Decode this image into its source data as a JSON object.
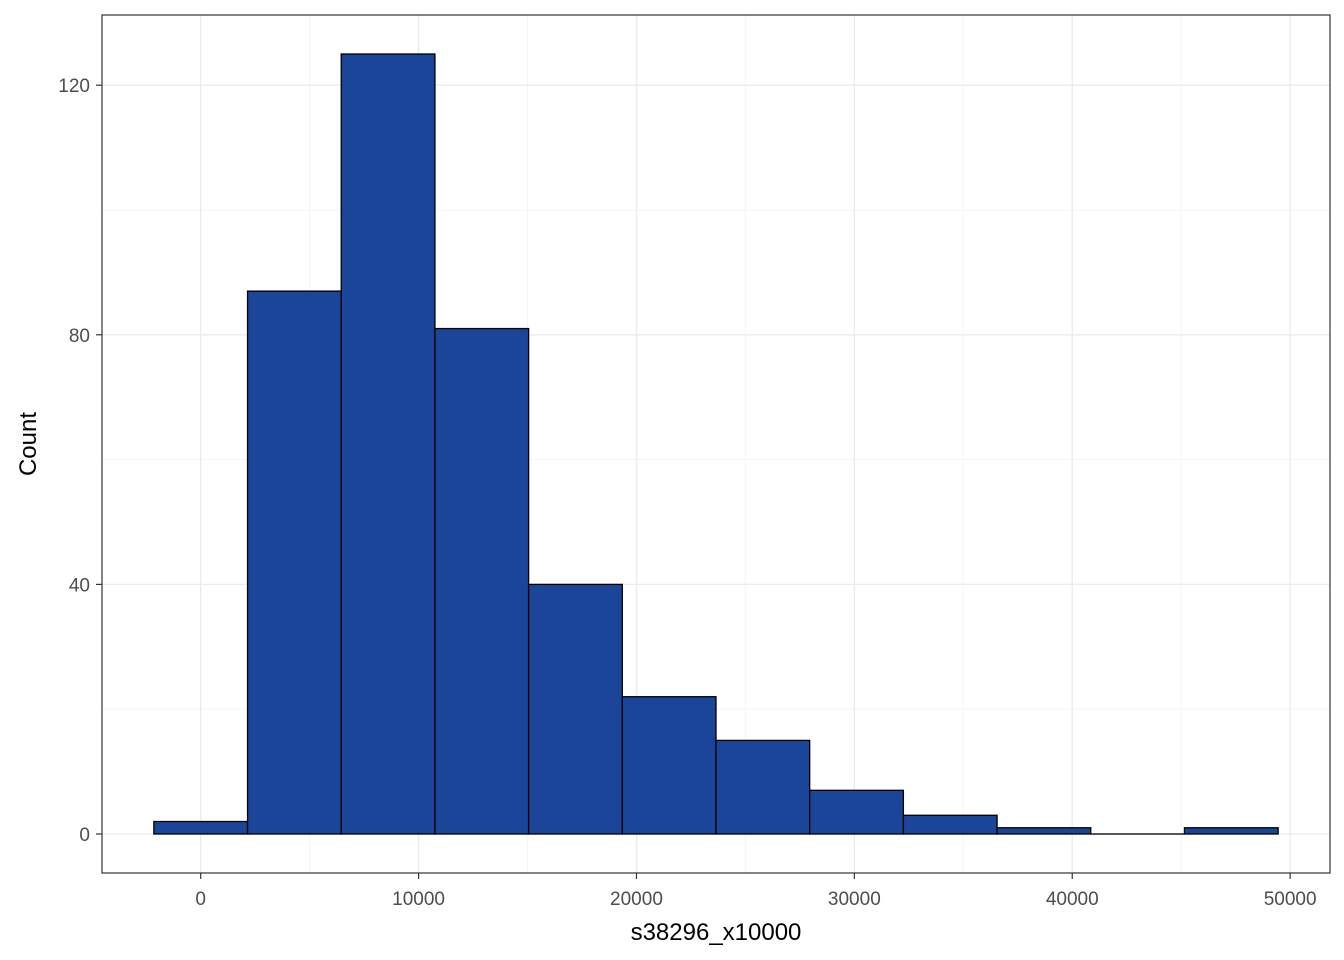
{
  "chart_data": {
    "type": "bar",
    "subtype": "histogram",
    "title": "",
    "xlabel": "s38296_x10000",
    "ylabel": "Count",
    "bins": [
      {
        "x_start": -2150,
        "x_end": 2150,
        "count": 2
      },
      {
        "x_start": 2150,
        "x_end": 6450,
        "count": 87
      },
      {
        "x_start": 6450,
        "x_end": 10750,
        "count": 125
      },
      {
        "x_start": 10750,
        "x_end": 15050,
        "count": 81
      },
      {
        "x_start": 15050,
        "x_end": 19350,
        "count": 40
      },
      {
        "x_start": 19350,
        "x_end": 23650,
        "count": 22
      },
      {
        "x_start": 23650,
        "x_end": 27950,
        "count": 15
      },
      {
        "x_start": 27950,
        "x_end": 32250,
        "count": 7
      },
      {
        "x_start": 32250,
        "x_end": 36550,
        "count": 3
      },
      {
        "x_start": 36550,
        "x_end": 40850,
        "count": 1
      },
      {
        "x_start": 40850,
        "x_end": 45150,
        "count": 0
      },
      {
        "x_start": 45150,
        "x_end": 49450,
        "count": 1
      }
    ],
    "xlim": [
      -4530,
      51830
    ],
    "ylim": [
      -6.25,
      131.25
    ],
    "x_ticks": [
      {
        "value": 0,
        "label": "0"
      },
      {
        "value": 10000,
        "label": "10000"
      },
      {
        "value": 20000,
        "label": "20000"
      },
      {
        "value": 30000,
        "label": "30000"
      },
      {
        "value": 40000,
        "label": "40000"
      },
      {
        "value": 50000,
        "label": "50000"
      }
    ],
    "y_ticks": [
      {
        "value": 0,
        "label": "0"
      },
      {
        "value": 40,
        "label": "40"
      },
      {
        "value": 80,
        "label": "80"
      },
      {
        "value": 120,
        "label": "120"
      }
    ],
    "x_minor_ticks": [
      5000,
      15000,
      25000,
      35000,
      45000
    ],
    "y_minor_ticks": [
      20,
      60,
      100
    ],
    "grid": true,
    "colors": {
      "bar_fill": "#1A4599",
      "bar_outline": "#000000",
      "grid_major": "#ebebeb",
      "grid_minor": "#f5f5f5",
      "panel_border": "#333333",
      "tick_text": "#4d4d4d"
    }
  }
}
